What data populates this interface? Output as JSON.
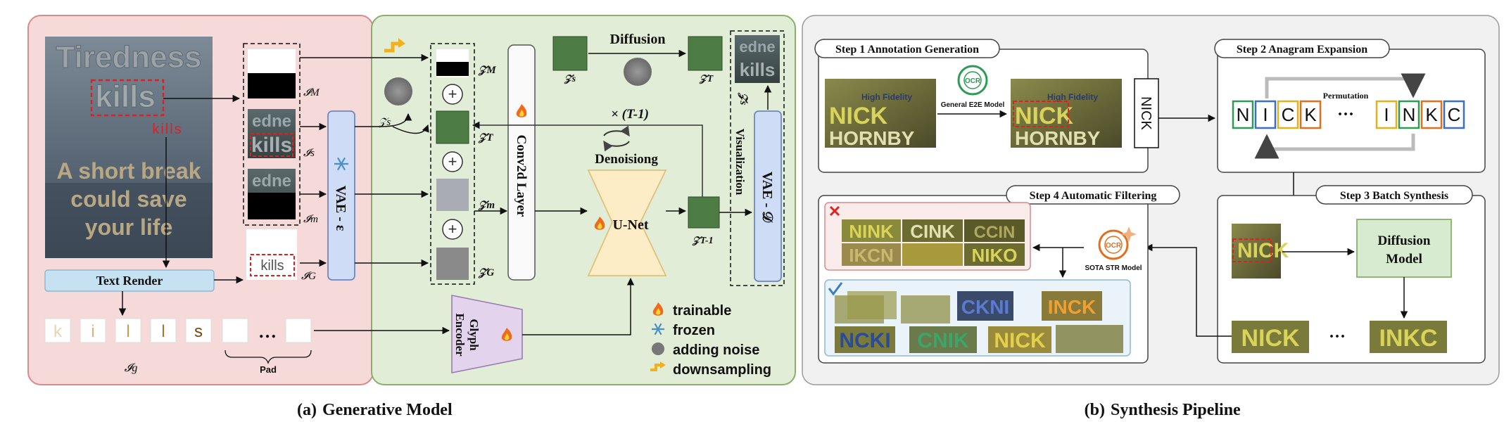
{
  "panel_a": {
    "caption_letter": "(a)",
    "caption": "Generative Model",
    "poster_lines": [
      "Tiredness",
      "kills",
      "A short break",
      "could save",
      "your life"
    ],
    "target_word": "kills",
    "text_render_label": "Text Render",
    "glyph_chars": [
      "k",
      "i",
      "l",
      "l",
      "s"
    ],
    "ellipsis": "…",
    "pad_label": "Pad",
    "ig_label": "𝓘g",
    "im_label": "𝓘M",
    "is_label": "𝓘s",
    "imask_label": "𝓘m",
    "iG_label": "𝓘G",
    "render_word": "kills",
    "crop_text_1": "edne",
    "crop_text_2": "kills",
    "vae_e_label": "VAE - ε",
    "zs_label": "𝒵s",
    "zm_label": "𝒵M",
    "zt_label": "𝒵T",
    "zmm_label": "𝒵m",
    "zg_label": "𝒵G",
    "conv_label": "Conv2d Layer",
    "diffusion_label": "Diffusion",
    "zs_top_label": "𝒵s",
    "zt_top_label": "𝒵T",
    "repeat_label": "× (T-1)",
    "denoise_label": "Denoisiong",
    "unet_label": "U-Net",
    "zt1_label": "𝒵T-1",
    "glyph_encoder_label": [
      "Glyph",
      "Encoder"
    ],
    "vae_d_label": "VAE - 𝒟",
    "visualization_label": "Visualization",
    "zs_hat_label": "𝒵̃s",
    "vis_text_1": "edne",
    "vis_text_2": "kills",
    "legend": [
      {
        "icon": "flame-icon",
        "label": "trainable"
      },
      {
        "icon": "snowflake-icon",
        "label": "frozen"
      },
      {
        "icon": "noise-dot-icon",
        "label": "adding noise"
      },
      {
        "icon": "downsample-icon",
        "label": "downsampling"
      }
    ]
  },
  "panel_b": {
    "caption_letter": "(b)",
    "caption": "Synthesis Pipeline",
    "step1_title": "Step 1 Annotation Generation",
    "step2_title": "Step 2 Anagram Expansion",
    "step3_title": "Step 3 Batch Synthesis",
    "step4_title": "Step 4 Automatic Filtering",
    "ocr_icon_text": "OCR",
    "e2e_model_label": "General E2E Model",
    "str_model_label": "SOTA STR Model",
    "sign_small_text": "High Fidelity",
    "sign_word_1": "NICK",
    "sign_word_2": "HORNBY",
    "nick_box": "NICK",
    "permutation_label": "Permutation",
    "anagram_1": [
      "N",
      "I",
      "C",
      "K"
    ],
    "anagram_2": [
      "I",
      "N",
      "K",
      "C"
    ],
    "diffusion_model_label": [
      "Diffusion",
      "Model"
    ],
    "batch_word_1": "NICK",
    "batch_word_2": "INKC",
    "rejected_words": [
      "NINK",
      "CINK",
      "CCIN",
      "IKCN",
      "NIKO"
    ],
    "accepted_words": [
      "NCKI",
      "CNIK",
      "NICK",
      "CKNI",
      "INCK"
    ],
    "ellipsis": "···"
  }
}
